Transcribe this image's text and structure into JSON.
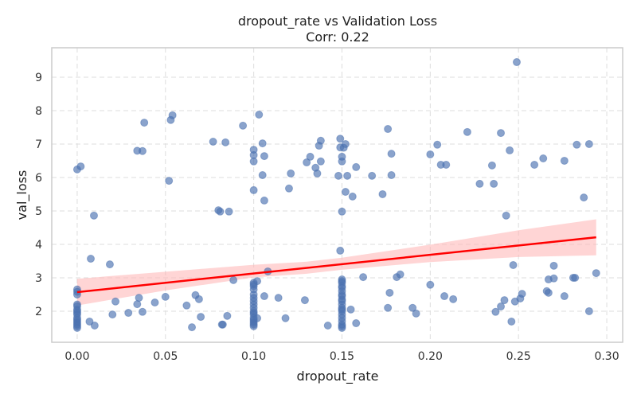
{
  "chart_data": {
    "type": "scatter",
    "title": "dropout_rate vs Validation Loss",
    "subtitle": "Corr: 0.22",
    "xlabel": "dropout_rate",
    "ylabel": "val_loss",
    "xlim": [
      -0.0144,
      0.309
    ],
    "ylim": [
      1.07,
      9.88
    ],
    "xticks": [
      0.0,
      0.05,
      0.1,
      0.15,
      0.2,
      0.25,
      0.3
    ],
    "xtick_labels": [
      "0.00",
      "0.05",
      "0.10",
      "0.15",
      "0.20",
      "0.25",
      "0.30"
    ],
    "yticks": [
      2,
      3,
      4,
      5,
      6,
      7,
      8,
      9
    ],
    "ytick_labels": [
      "2",
      "3",
      "4",
      "5",
      "6",
      "7",
      "8",
      "9"
    ],
    "grid": true,
    "point_color": "#4c72b0",
    "line_color": "#ff0000",
    "band_color": "#ffb3b3",
    "regression": {
      "intercept": 2.57,
      "slope": 5.58,
      "x_range": [
        0.0,
        0.294
      ]
    },
    "ci_band": {
      "x": [
        0.0,
        0.05,
        0.1,
        0.13,
        0.15,
        0.2,
        0.25,
        0.294
      ],
      "lower": [
        2.17,
        2.62,
        3.01,
        3.12,
        3.24,
        3.47,
        3.62,
        3.67
      ],
      "upper": [
        2.97,
        3.18,
        3.39,
        3.48,
        3.6,
        3.99,
        4.42,
        4.75
      ]
    },
    "points": [
      [
        0,
        6.24
      ],
      [
        0,
        2.65
      ],
      [
        0,
        2.58
      ],
      [
        0,
        2.5
      ],
      [
        0,
        2.2
      ],
      [
        0,
        2.15
      ],
      [
        0,
        2.05
      ],
      [
        0,
        2.0
      ],
      [
        0,
        1.95
      ],
      [
        0,
        1.9
      ],
      [
        0,
        1.8
      ],
      [
        0,
        1.75
      ],
      [
        0,
        1.7
      ],
      [
        0,
        1.65
      ],
      [
        0,
        1.6
      ],
      [
        0,
        1.55
      ],
      [
        0,
        1.5
      ],
      [
        0.002,
        6.33
      ],
      [
        0.0095,
        4.86
      ],
      [
        0.0077,
        3.57
      ],
      [
        0.007,
        1.69
      ],
      [
        0.0099,
        1.57
      ],
      [
        0.0185,
        3.4
      ],
      [
        0.0217,
        2.29
      ],
      [
        0.02,
        1.9
      ],
      [
        0.029,
        1.95
      ],
      [
        0.034,
        6.8
      ],
      [
        0.037,
        6.79
      ],
      [
        0.038,
        7.64
      ],
      [
        0.035,
        2.4
      ],
      [
        0.034,
        2.21
      ],
      [
        0.037,
        1.98
      ],
      [
        0.044,
        2.26
      ],
      [
        0.05,
        2.43
      ],
      [
        0.052,
        5.9
      ],
      [
        0.053,
        7.72
      ],
      [
        0.054,
        7.86
      ],
      [
        0.062,
        2.17
      ],
      [
        0.065,
        1.52
      ],
      [
        0.067,
        2.48
      ],
      [
        0.069,
        2.36
      ],
      [
        0.07,
        1.83
      ],
      [
        0.077,
        7.07
      ],
      [
        0.08,
        5.02
      ],
      [
        0.081,
        4.98
      ],
      [
        0.082,
        1.6
      ],
      [
        0.0825,
        1.6
      ],
      [
        0.084,
        7.05
      ],
      [
        0.085,
        1.86
      ],
      [
        0.086,
        4.98
      ],
      [
        0.0885,
        2.93
      ],
      [
        0.0939,
        7.55
      ],
      [
        0.1,
        6.83
      ],
      [
        0.1,
        6.67
      ],
      [
        0.1,
        6.48
      ],
      [
        0.1,
        5.62
      ],
      [
        0.1,
        2.85
      ],
      [
        0.1,
        2.8
      ],
      [
        0.1,
        2.75
      ],
      [
        0.1,
        2.65
      ],
      [
        0.1,
        2.5
      ],
      [
        0.1,
        2.4
      ],
      [
        0.1,
        2.3
      ],
      [
        0.1,
        2.2
      ],
      [
        0.1,
        2.1
      ],
      [
        0.1,
        2.0
      ],
      [
        0.1,
        1.95
      ],
      [
        0.1,
        1.9
      ],
      [
        0.1,
        1.8
      ],
      [
        0.1,
        1.75
      ],
      [
        0.1,
        1.7
      ],
      [
        0.1,
        1.65
      ],
      [
        0.1,
        1.6
      ],
      [
        0.1,
        1.55
      ],
      [
        0.103,
        7.88
      ],
      [
        0.102,
        2.9
      ],
      [
        0.105,
        7.02
      ],
      [
        0.106,
        6.64
      ],
      [
        0.105,
        6.07
      ],
      [
        0.106,
        5.31
      ],
      [
        0.108,
        3.19
      ],
      [
        0.106,
        2.45
      ],
      [
        0.102,
        1.79
      ],
      [
        0.114,
        2.4
      ],
      [
        0.118,
        1.79
      ],
      [
        0.121,
        6.12
      ],
      [
        0.12,
        5.67
      ],
      [
        0.129,
        2.33
      ],
      [
        0.13,
        6.45
      ],
      [
        0.132,
        6.62
      ],
      [
        0.135,
        6.29
      ],
      [
        0.136,
        6.12
      ],
      [
        0.137,
        6.95
      ],
      [
        0.138,
        7.1
      ],
      [
        0.138,
        6.48
      ],
      [
        0.142,
        1.57
      ],
      [
        0.149,
        7.16
      ],
      [
        0.149,
        6.9
      ],
      [
        0.151,
        6.89
      ],
      [
        0.15,
        6.62
      ],
      [
        0.15,
        6.48
      ],
      [
        0.148,
        6.05
      ],
      [
        0.153,
        6.05
      ],
      [
        0.152,
        7.0
      ],
      [
        0.15,
        4.98
      ],
      [
        0.149,
        3.81
      ],
      [
        0.152,
        5.57
      ],
      [
        0.156,
        5.43
      ],
      [
        0.158,
        6.31
      ],
      [
        0.155,
        2.05
      ],
      [
        0.158,
        1.64
      ],
      [
        0.162,
        3.02
      ],
      [
        0.15,
        2.95
      ],
      [
        0.15,
        2.9
      ],
      [
        0.15,
        2.85
      ],
      [
        0.15,
        2.75
      ],
      [
        0.15,
        2.7
      ],
      [
        0.15,
        2.6
      ],
      [
        0.15,
        2.5
      ],
      [
        0.15,
        2.45
      ],
      [
        0.15,
        2.35
      ],
      [
        0.15,
        2.3
      ],
      [
        0.15,
        2.2
      ],
      [
        0.15,
        2.1
      ],
      [
        0.15,
        2.05
      ],
      [
        0.15,
        2.0
      ],
      [
        0.15,
        1.9
      ],
      [
        0.15,
        1.8
      ],
      [
        0.15,
        1.7
      ],
      [
        0.15,
        1.6
      ],
      [
        0.15,
        1.55
      ],
      [
        0.15,
        1.5
      ],
      [
        0.167,
        6.05
      ],
      [
        0.173,
        5.5
      ],
      [
        0.176,
        7.45
      ],
      [
        0.176,
        2.1
      ],
      [
        0.177,
        2.55
      ],
      [
        0.178,
        6.71
      ],
      [
        0.178,
        6.07
      ],
      [
        0.181,
        3.02
      ],
      [
        0.183,
        3.1
      ],
      [
        0.19,
        2.1
      ],
      [
        0.192,
        1.93
      ],
      [
        0.2,
        6.69
      ],
      [
        0.2,
        2.79
      ],
      [
        0.204,
        6.98
      ],
      [
        0.206,
        6.38
      ],
      [
        0.208,
        2.45
      ],
      [
        0.209,
        6.38
      ],
      [
        0.213,
        2.36
      ],
      [
        0.221,
        7.36
      ],
      [
        0.228,
        5.81
      ],
      [
        0.235,
        6.36
      ],
      [
        0.236,
        5.81
      ],
      [
        0.237,
        1.98
      ],
      [
        0.24,
        7.33
      ],
      [
        0.24,
        2.14
      ],
      [
        0.242,
        2.33
      ],
      [
        0.243,
        4.86
      ],
      [
        0.245,
        6.81
      ],
      [
        0.247,
        3.38
      ],
      [
        0.246,
        1.69
      ],
      [
        0.249,
        9.45
      ],
      [
        0.248,
        2.29
      ],
      [
        0.251,
        2.38
      ],
      [
        0.252,
        2.52
      ],
      [
        0.259,
        6.38
      ],
      [
        0.264,
        6.57
      ],
      [
        0.266,
        2.6
      ],
      [
        0.267,
        2.95
      ],
      [
        0.267,
        2.55
      ],
      [
        0.27,
        2.98
      ],
      [
        0.27,
        3.36
      ],
      [
        0.276,
        6.5
      ],
      [
        0.276,
        2.45
      ],
      [
        0.281,
        3.0
      ],
      [
        0.282,
        3.0
      ],
      [
        0.283,
        6.98
      ],
      [
        0.287,
        5.4
      ],
      [
        0.29,
        7.0
      ],
      [
        0.29,
        2.0
      ],
      [
        0.294,
        3.14
      ]
    ]
  }
}
